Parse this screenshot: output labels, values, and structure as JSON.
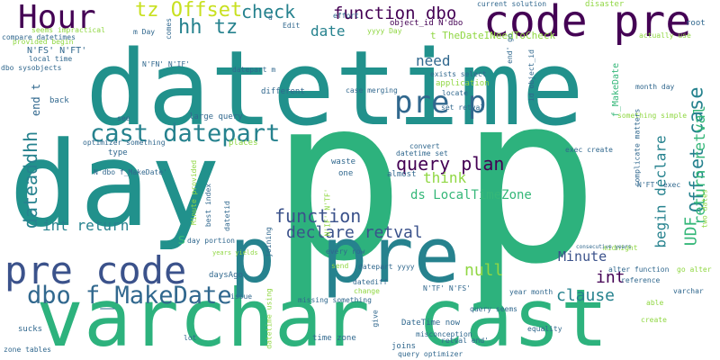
{
  "palette": {
    "dark_purple": "#440154",
    "indigo": "#3b528b",
    "blue": "#31688e",
    "teal": "#21918c",
    "green": "#35b779",
    "lime": "#90d743",
    "yellow": "#c8e020"
  },
  "words": [
    {
      "text": "datetime",
      "color": "#21918c"
    },
    {
      "text": "p",
      "color": "#2db27d"
    },
    {
      "text": "p",
      "color": "#2db27d"
    },
    {
      "text": "day",
      "color": "#21918c"
    },
    {
      "text": "varchar cast",
      "color": "#2db27d"
    },
    {
      "text": "p pre",
      "color": "#26828e"
    },
    {
      "text": "code pre",
      "color": "#440154"
    },
    {
      "text": "pre code",
      "color": "#3b528b"
    },
    {
      "text": "Hour",
      "color": "#440154"
    },
    {
      "text": "dbo f_MakeDate",
      "color": "#31688e"
    },
    {
      "text": "cast datepart",
      "color": "#26828e"
    },
    {
      "text": "pre p",
      "color": "#31688e"
    },
    {
      "text": "tz Offset",
      "color": "#c8e020"
    },
    {
      "text": "check",
      "color": "#26828e"
    },
    {
      "text": "function dbo",
      "color": "#440154"
    },
    {
      "text": "hh tz",
      "color": "#26828e"
    },
    {
      "text": "date",
      "color": "#26828e"
    },
    {
      "text": "need",
      "color": "#31688e"
    },
    {
      "text": "query plan",
      "color": "#440154"
    },
    {
      "text": "function",
      "color": "#3b528b"
    },
    {
      "text": "declare retval",
      "color": "#3b528b"
    },
    {
      "text": "think",
      "color": "#90d743"
    },
    {
      "text": "ds LocalTimeZone",
      "color": "#35b779"
    },
    {
      "text": "int return",
      "color": "#26828e"
    },
    {
      "text": "null",
      "color": "#90d743"
    },
    {
      "text": "clause",
      "color": "#26828e"
    },
    {
      "text": "Minute",
      "color": "#3b528b"
    },
    {
      "text": "int",
      "color": "#440154"
    },
    {
      "text": "dateaddhh",
      "color": "#26828e"
    },
    {
      "text": "case",
      "color": "#26828e"
    },
    {
      "text": "Offset",
      "color": "#26828e"
    },
    {
      "text": "UDF",
      "color": "#35b779"
    },
    {
      "text": "return retval",
      "color": "#35b779"
    },
    {
      "text": "begin declare",
      "color": "#26828e"
    },
    {
      "text": "t TheDateINeedToCheck",
      "color": "#90d743"
    },
    {
      "text": "s",
      "color": "#35b779"
    },
    {
      "text": "end t",
      "color": "#31688e"
    },
    {
      "text": "compare datetimes",
      "color": "#31688e"
    },
    {
      "text": "seems impractical",
      "color": "#90d743"
    },
    {
      "text": "provided begin",
      "color": "#90d743"
    },
    {
      "text": "N'FS' N'FT'",
      "color": "#31688e"
    },
    {
      "text": "local time",
      "color": "#31688e"
    },
    {
      "text": "dbo sysobjects",
      "color": "#31688e"
    },
    {
      "text": "N'FN' N'IF'",
      "color": "#31688e"
    },
    {
      "text": "m Day",
      "color": "#31688e"
    },
    {
      "text": "back",
      "color": "#31688e"
    },
    {
      "text": "Edit",
      "color": "#31688e"
    },
    {
      "text": "object_id N'dbo",
      "color": "#440154"
    },
    {
      "text": "yyyy Day",
      "color": "#90d743"
    },
    {
      "text": "effort",
      "color": "#31688e"
    },
    {
      "text": "d",
      "color": "#31688e"
    },
    {
      "text": "current solution",
      "color": "#31688e"
    },
    {
      "text": "disaster",
      "color": "#90d743"
    },
    {
      "text": "root",
      "color": "#31688e"
    },
    {
      "text": "actually use",
      "color": "#90d743"
    },
    {
      "text": "datepart m",
      "color": "#31688e"
    },
    {
      "text": "different",
      "color": "#31688e"
    },
    {
      "text": "exists select",
      "color": "#31688e"
    },
    {
      "text": "application",
      "color": "#90d743"
    },
    {
      "text": "locate",
      "color": "#31688e"
    },
    {
      "text": "case merging",
      "color": "#31688e"
    },
    {
      "text": "month day",
      "color": "#31688e"
    },
    {
      "text": "set retval",
      "color": "#31688e"
    },
    {
      "text": "f_MakeDate",
      "color": "#35b779"
    },
    {
      "text": "end' go",
      "color": "#31688e"
    },
    {
      "text": "id object_id",
      "color": "#31688e"
    },
    {
      "text": "something simple",
      "color": "#90d743"
    },
    {
      "text": "see",
      "color": "#31688e"
    },
    {
      "text": "large query",
      "color": "#31688e"
    },
    {
      "text": "optimizer something",
      "color": "#31688e"
    },
    {
      "text": "places",
      "color": "#90d743"
    },
    {
      "text": "type",
      "color": "#31688e"
    },
    {
      "text": "N'dbo f_MakeDate'",
      "color": "#31688e"
    },
    {
      "text": "datetime set",
      "color": "#31688e"
    },
    {
      "text": "convert",
      "color": "#31688e"
    },
    {
      "text": "waste",
      "color": "#31688e"
    },
    {
      "text": "one",
      "color": "#31688e"
    },
    {
      "text": "almost",
      "color": "#31688e"
    },
    {
      "text": "exec create",
      "color": "#31688e"
    },
    {
      "text": "complicate matters",
      "color": "#31688e"
    },
    {
      "text": "N'FT' exec",
      "color": "#31688e"
    },
    {
      "text": "datediff",
      "color": "#31688e"
    },
    {
      "text": "day portion",
      "color": "#31688e"
    },
    {
      "text": "datepart yyyy",
      "color": "#31688e"
    },
    {
      "text": "every row",
      "color": "#31688e"
    },
    {
      "text": "send",
      "color": "#90d743"
    },
    {
      "text": "daysAgo",
      "color": "#31688e"
    },
    {
      "text": "alter function",
      "color": "#31688e"
    },
    {
      "text": "midnight",
      "color": "#90d743"
    },
    {
      "text": "go alter",
      "color": "#90d743"
    },
    {
      "text": "reference",
      "color": "#31688e"
    },
    {
      "text": "varchar",
      "color": "#31688e"
    },
    {
      "text": "able",
      "color": "#90d743"
    },
    {
      "text": "create",
      "color": "#90d743"
    },
    {
      "text": "issue",
      "color": "#31688e"
    },
    {
      "text": "missing something",
      "color": "#31688e"
    },
    {
      "text": "change",
      "color": "#90d743"
    },
    {
      "text": "year month",
      "color": "#31688e"
    },
    {
      "text": "N'TF' N'FS'",
      "color": "#31688e"
    },
    {
      "text": "query seems",
      "color": "#31688e"
    },
    {
      "text": "equality",
      "color": "#31688e"
    },
    {
      "text": "DateTime now",
      "color": "#31688e"
    },
    {
      "text": "misconception",
      "color": "#31688e"
    },
    {
      "text": "retval end'",
      "color": "#31688e"
    },
    {
      "text": "time zone",
      "color": "#31688e"
    },
    {
      "text": "joins",
      "color": "#31688e"
    },
    {
      "text": "query optimizer",
      "color": "#31688e"
    },
    {
      "text": "sucks",
      "color": "#31688e"
    },
    {
      "text": "lot",
      "color": "#31688e"
    },
    {
      "text": "zone tables",
      "color": "#31688e"
    },
    {
      "text": "give",
      "color": "#31688e"
    },
    {
      "text": "datetime using",
      "color": "#90d743"
    },
    {
      "text": "joining",
      "color": "#31688e"
    },
    {
      "text": "best index",
      "color": "#31688e"
    },
    {
      "text": "Minute provided",
      "color": "#90d743"
    },
    {
      "text": "datetid",
      "color": "#31688e"
    },
    {
      "text": "years yields",
      "color": "#90d743"
    },
    {
      "text": "N'IF' N'TF'",
      "color": "#90d743"
    },
    {
      "text": "comes",
      "color": "#31688e"
    },
    {
      "text": "two dates",
      "color": "#90d743"
    },
    {
      "text": "consecutive years",
      "color": "#31688e"
    }
  ]
}
